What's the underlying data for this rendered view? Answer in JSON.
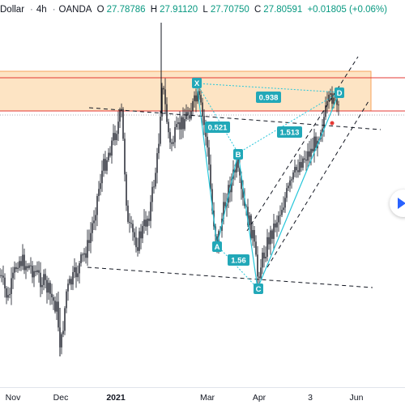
{
  "header": {
    "symbol": "Dollar",
    "interval": "4h",
    "broker": "OANDA",
    "o_label": "O",
    "o": "27.78786",
    "h_label": "H",
    "h": "27.91120",
    "l_label": "L",
    "l": "27.70750",
    "c_label": "C",
    "c": "27.80591",
    "change": "+0.01805 (+0.06%)"
  },
  "nav_button": {
    "icon": "play-right-icon",
    "color": "#2962ff"
  },
  "colors": {
    "up": "#26a69a",
    "down": "#ef5350",
    "candle_body": "#131722",
    "zone_fill": "#fde4c4",
    "zone_border": "#f7a35c",
    "red_line": "#e53935",
    "pattern": "#26c6da",
    "label_bg": "#22a8b8",
    "dashed": "#131722"
  },
  "chart_data": {
    "type": "candlestick",
    "x_ticks": [
      "Nov",
      "Dec",
      "2021",
      "Mar",
      "Apr",
      "3",
      "Jun"
    ],
    "pattern": {
      "name": "XABCD",
      "points": [
        "X",
        "A",
        "B",
        "C",
        "D"
      ],
      "ratios": [
        "0.938",
        "0.521",
        "1.56",
        "1.513"
      ]
    },
    "zone": {
      "type": "supply/resistance rectangle"
    }
  }
}
